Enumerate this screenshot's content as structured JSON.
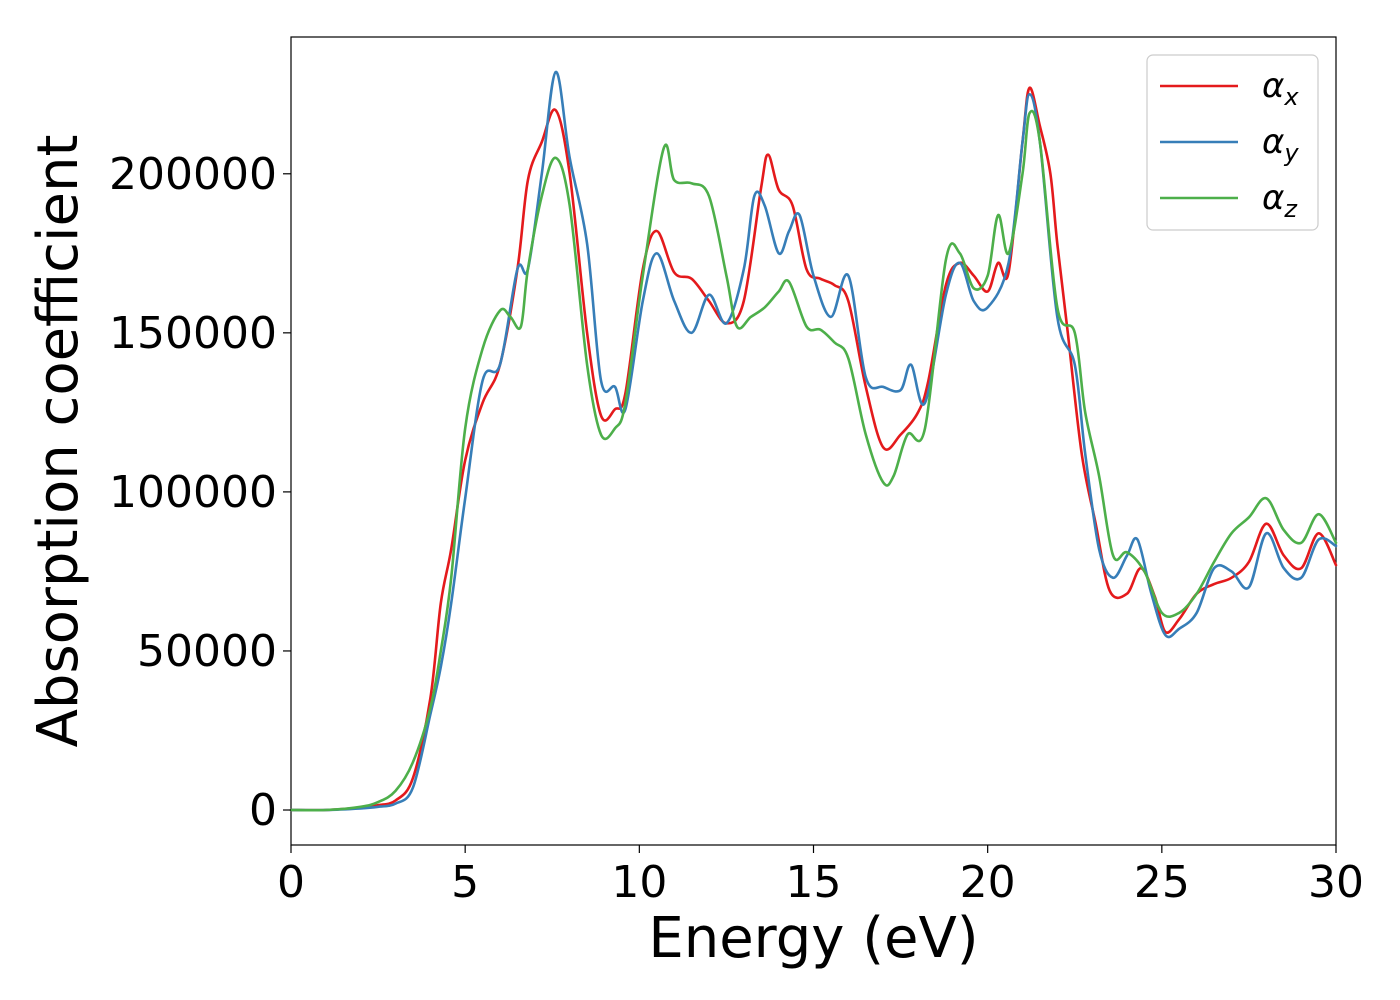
{
  "chart_data": {
    "type": "line",
    "xlabel": "Energy (eV)",
    "ylabel": "Absorption coefficient",
    "xlim": [
      0,
      30
    ],
    "ylim": [
      -11000,
      243000
    ],
    "xticks": [
      0,
      5,
      10,
      15,
      20,
      25,
      30
    ],
    "yticks": [
      0,
      50000,
      100000,
      150000,
      200000
    ],
    "grid": false,
    "legend_position": "top-right",
    "series": [
      {
        "name": "αx",
        "symbol": "α",
        "subscript": "x",
        "color": "#e41a1c",
        "points": [
          [
            0,
            0
          ],
          [
            1,
            0
          ],
          [
            2,
            800
          ],
          [
            2.5,
            1500
          ],
          [
            3,
            3000
          ],
          [
            3.5,
            10000
          ],
          [
            4,
            35000
          ],
          [
            4.3,
            65000
          ],
          [
            4.6,
            82000
          ],
          [
            5,
            110000
          ],
          [
            5.5,
            128000
          ],
          [
            6,
            140000
          ],
          [
            6.5,
            170000
          ],
          [
            6.8,
            198000
          ],
          [
            7.2,
            210000
          ],
          [
            7.6,
            220000
          ],
          [
            8,
            200000
          ],
          [
            8.5,
            150000
          ],
          [
            8.9,
            124000
          ],
          [
            9.3,
            126000
          ],
          [
            9.6,
            131000
          ],
          [
            10.1,
            170000
          ],
          [
            10.5,
            182000
          ],
          [
            11,
            169000
          ],
          [
            11.5,
            167000
          ],
          [
            12,
            160000
          ],
          [
            12.5,
            153000
          ],
          [
            13,
            160000
          ],
          [
            13.5,
            196000
          ],
          [
            13.7,
            206000
          ],
          [
            14,
            195000
          ],
          [
            14.4,
            190000
          ],
          [
            14.8,
            170000
          ],
          [
            15.2,
            167000
          ],
          [
            15.6,
            165000
          ],
          [
            16,
            160000
          ],
          [
            16.5,
            133000
          ],
          [
            17,
            114000
          ],
          [
            17.5,
            118000
          ],
          [
            18,
            125000
          ],
          [
            18.3,
            135000
          ],
          [
            18.8,
            165000
          ],
          [
            19.2,
            172000
          ],
          [
            19.6,
            168000
          ],
          [
            20,
            163000
          ],
          [
            20.3,
            172000
          ],
          [
            20.6,
            169000
          ],
          [
            21,
            210000
          ],
          [
            21.2,
            227000
          ],
          [
            21.5,
            215000
          ],
          [
            21.8,
            200000
          ],
          [
            22,
            178000
          ],
          [
            22.3,
            150000
          ],
          [
            22.7,
            112000
          ],
          [
            23.1,
            90000
          ],
          [
            23.5,
            69000
          ],
          [
            24,
            68000
          ],
          [
            24.4,
            76000
          ],
          [
            24.8,
            67000
          ],
          [
            25.1,
            56000
          ],
          [
            25.5,
            60000
          ],
          [
            26,
            68000
          ],
          [
            26.5,
            71000
          ],
          [
            27,
            73000
          ],
          [
            27.5,
            78000
          ],
          [
            28,
            90000
          ],
          [
            28.5,
            80000
          ],
          [
            29,
            76000
          ],
          [
            29.5,
            87000
          ],
          [
            30,
            77000
          ]
        ]
      },
      {
        "name": "αy",
        "symbol": "α",
        "subscript": "y",
        "color": "#377eb8",
        "points": [
          [
            0,
            0
          ],
          [
            1,
            0
          ],
          [
            2,
            500
          ],
          [
            2.5,
            1000
          ],
          [
            3,
            2000
          ],
          [
            3.5,
            7000
          ],
          [
            4,
            30000
          ],
          [
            4.3,
            45000
          ],
          [
            4.6,
            65000
          ],
          [
            5,
            98000
          ],
          [
            5.5,
            135000
          ],
          [
            6,
            140000
          ],
          [
            6.5,
            170000
          ],
          [
            6.8,
            170000
          ],
          [
            7.2,
            200000
          ],
          [
            7.6,
            232000
          ],
          [
            8,
            205000
          ],
          [
            8.5,
            178000
          ],
          [
            8.9,
            135000
          ],
          [
            9.3,
            133000
          ],
          [
            9.6,
            126000
          ],
          [
            10.1,
            160000
          ],
          [
            10.5,
            175000
          ],
          [
            11,
            160000
          ],
          [
            11.5,
            150000
          ],
          [
            12,
            162000
          ],
          [
            12.5,
            153000
          ],
          [
            13,
            170000
          ],
          [
            13.3,
            193000
          ],
          [
            13.6,
            190000
          ],
          [
            14,
            175000
          ],
          [
            14.3,
            182000
          ],
          [
            14.6,
            187000
          ],
          [
            15,
            168000
          ],
          [
            15.5,
            155000
          ],
          [
            16,
            168000
          ],
          [
            16.5,
            136000
          ],
          [
            17,
            133000
          ],
          [
            17.5,
            132000
          ],
          [
            17.8,
            140000
          ],
          [
            18.2,
            128000
          ],
          [
            18.8,
            162000
          ],
          [
            19.2,
            172000
          ],
          [
            19.6,
            160000
          ],
          [
            20,
            158000
          ],
          [
            20.6,
            172000
          ],
          [
            21,
            210000
          ],
          [
            21.2,
            225000
          ],
          [
            21.5,
            210000
          ],
          [
            22,
            155000
          ],
          [
            22.5,
            140000
          ],
          [
            22.8,
            112000
          ],
          [
            23.2,
            82000
          ],
          [
            23.6,
            73000
          ],
          [
            24,
            80000
          ],
          [
            24.3,
            85000
          ],
          [
            24.7,
            68000
          ],
          [
            25.1,
            55000
          ],
          [
            25.5,
            57000
          ],
          [
            26,
            62000
          ],
          [
            26.5,
            76000
          ],
          [
            27,
            75000
          ],
          [
            27.5,
            70000
          ],
          [
            28,
            87000
          ],
          [
            28.5,
            76000
          ],
          [
            29,
            73000
          ],
          [
            29.5,
            85000
          ],
          [
            30,
            83000
          ]
        ]
      },
      {
        "name": "αz",
        "symbol": "α",
        "subscript": "z",
        "color": "#4daf4a",
        "points": [
          [
            0,
            0
          ],
          [
            1,
            0
          ],
          [
            2,
            1000
          ],
          [
            2.5,
            2500
          ],
          [
            3,
            6000
          ],
          [
            3.5,
            15000
          ],
          [
            4,
            32000
          ],
          [
            4.3,
            50000
          ],
          [
            4.6,
            73000
          ],
          [
            5,
            120000
          ],
          [
            5.5,
            145000
          ],
          [
            6,
            157000
          ],
          [
            6.3,
            155000
          ],
          [
            6.6,
            152000
          ],
          [
            6.8,
            170000
          ],
          [
            7.2,
            193000
          ],
          [
            7.6,
            205000
          ],
          [
            8,
            190000
          ],
          [
            8.5,
            140000
          ],
          [
            8.9,
            118000
          ],
          [
            9.3,
            120000
          ],
          [
            9.6,
            128000
          ],
          [
            10.1,
            168000
          ],
          [
            10.7,
            208000
          ],
          [
            11,
            198000
          ],
          [
            11.5,
            197000
          ],
          [
            12,
            193000
          ],
          [
            12.5,
            168000
          ],
          [
            12.8,
            152000
          ],
          [
            13.2,
            155000
          ],
          [
            13.6,
            158000
          ],
          [
            14,
            163000
          ],
          [
            14.3,
            166000
          ],
          [
            14.8,
            152000
          ],
          [
            15.2,
            151000
          ],
          [
            15.6,
            147000
          ],
          [
            16,
            142000
          ],
          [
            16.5,
            118000
          ],
          [
            17,
            103000
          ],
          [
            17.3,
            105000
          ],
          [
            17.7,
            118000
          ],
          [
            18.2,
            120000
          ],
          [
            18.8,
            173000
          ],
          [
            19.2,
            175000
          ],
          [
            19.6,
            164000
          ],
          [
            20,
            168000
          ],
          [
            20.3,
            187000
          ],
          [
            20.6,
            175000
          ],
          [
            21,
            200000
          ],
          [
            21.2,
            219000
          ],
          [
            21.5,
            210000
          ],
          [
            22,
            158000
          ],
          [
            22.5,
            150000
          ],
          [
            22.8,
            125000
          ],
          [
            23.2,
            105000
          ],
          [
            23.6,
            80000
          ],
          [
            24,
            81000
          ],
          [
            24.5,
            75000
          ],
          [
            25,
            62000
          ],
          [
            25.5,
            62000
          ],
          [
            26,
            68000
          ],
          [
            26.5,
            78000
          ],
          [
            27,
            87000
          ],
          [
            27.5,
            92000
          ],
          [
            28,
            98000
          ],
          [
            28.5,
            88000
          ],
          [
            29,
            84000
          ],
          [
            29.5,
            93000
          ],
          [
            30,
            84000
          ]
        ]
      }
    ]
  }
}
